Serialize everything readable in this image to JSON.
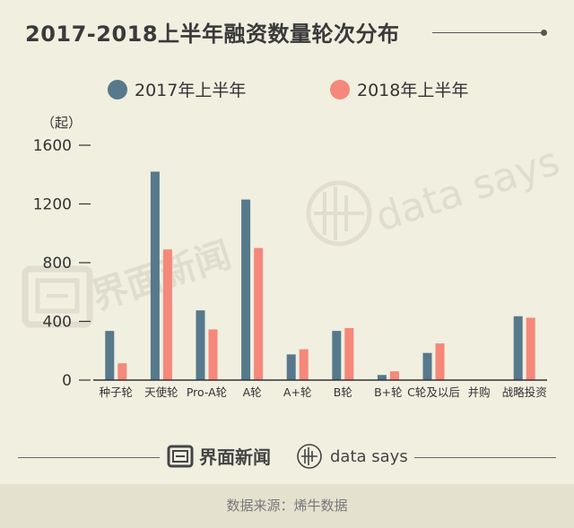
{
  "header": {
    "title": "2017-2018上半年融资数量轮次分布"
  },
  "colors": {
    "series_2017": "#56798c",
    "series_2018": "#f5887a",
    "background": "#f1efe0",
    "axis": "#333333"
  },
  "chart_data": {
    "type": "bar",
    "unit_label": "（起）",
    "categories": [
      "种子轮",
      "天使轮",
      "Pro-A轮",
      "A轮",
      "A+轮",
      "B轮",
      "B+轮",
      "C轮及以后",
      "并购",
      "战略投资"
    ],
    "series": [
      {
        "name": "2017年上半年",
        "values": [
          335,
          1420,
          475,
          1230,
          175,
          335,
          35,
          185,
          0,
          435
        ]
      },
      {
        "name": "2018年上半年",
        "values": [
          115,
          890,
          345,
          900,
          210,
          355,
          60,
          250,
          0,
          425
        ]
      }
    ],
    "yticks": [
      0,
      400,
      800,
      1200,
      1600
    ],
    "ylim": [
      0,
      1600
    ],
    "grid": false,
    "legend_position": "top"
  },
  "watermark": {
    "brand_cn": "界面新闻",
    "brand_en": "data says"
  },
  "footer": {
    "brand_cn": "界面新闻",
    "brand_en": "data says",
    "source": "数据来源：烯牛数据"
  }
}
